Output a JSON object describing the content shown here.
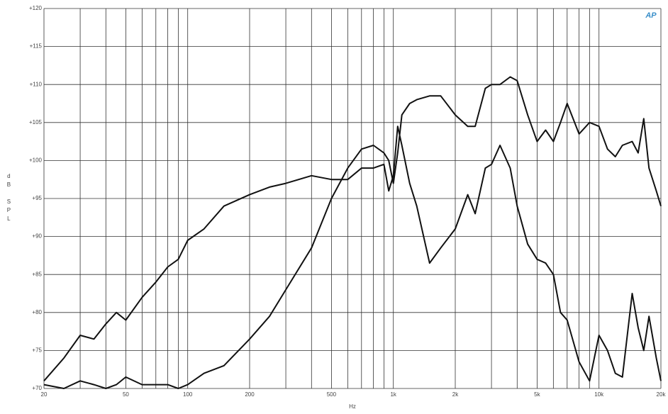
{
  "chart_data": {
    "type": "line",
    "logo": "AP",
    "xlabel": "Hz",
    "ylabel": "dB SPL",
    "xlog": true,
    "grid": true,
    "xlim": [
      20,
      20000
    ],
    "ylim": [
      70,
      120
    ],
    "xticks": [
      {
        "value": 20,
        "label": "20"
      },
      {
        "value": 50,
        "label": "50"
      },
      {
        "value": 100,
        "label": "100"
      },
      {
        "value": 200,
        "label": "200"
      },
      {
        "value": 500,
        "label": "500"
      },
      {
        "value": 1000,
        "label": "1k"
      },
      {
        "value": 2000,
        "label": "2k"
      },
      {
        "value": 5000,
        "label": "5k"
      },
      {
        "value": 10000,
        "label": "10k"
      },
      {
        "value": 20000,
        "label": "20k"
      }
    ],
    "xgrid": [
      30,
      40,
      60,
      70,
      80,
      90,
      300,
      400,
      600,
      700,
      800,
      900,
      3000,
      4000,
      6000,
      7000,
      8000,
      9000
    ],
    "yticks": [
      {
        "value": 70,
        "label": "+70"
      },
      {
        "value": 75,
        "label": "+75"
      },
      {
        "value": 80,
        "label": "+80"
      },
      {
        "value": 85,
        "label": "+85"
      },
      {
        "value": 90,
        "label": "+90"
      },
      {
        "value": 95,
        "label": "+95"
      },
      {
        "value": 100,
        "label": "+100"
      },
      {
        "value": 105,
        "label": "+105"
      },
      {
        "value": 110,
        "label": "+110"
      },
      {
        "value": 115,
        "label": "+115"
      },
      {
        "value": 120,
        "label": "+120"
      }
    ],
    "x": [
      20,
      25,
      30,
      35,
      40,
      45,
      50,
      60,
      70,
      80,
      90,
      100,
      120,
      150,
      200,
      250,
      300,
      400,
      500,
      600,
      700,
      800,
      900,
      950,
      1000,
      1050,
      1100,
      1200,
      1300,
      1500,
      1700,
      2000,
      2300,
      2500,
      2800,
      3000,
      3300,
      3700,
      4000,
      4500,
      5000,
      5500,
      6000,
      6500,
      7000,
      8000,
      9000,
      10000,
      11000,
      12000,
      13000,
      14500,
      15500,
      16500,
      17500,
      19000,
      20000
    ],
    "series": [
      {
        "color": "#111111",
        "values": [
          71,
          74,
          77,
          76.5,
          78.5,
          80,
          79,
          82,
          84,
          86,
          87,
          89.5,
          91,
          94,
          95.5,
          96.5,
          97,
          98,
          97.5,
          97.5,
          99,
          99,
          99.5,
          96,
          98,
          104.5,
          102,
          97,
          94,
          86.5,
          88.5,
          91,
          95.5,
          93,
          99,
          99.5,
          102,
          99,
          94,
          89,
          87,
          86.5,
          85,
          80,
          79,
          73.5,
          71,
          77,
          75,
          72,
          71.5,
          82.5,
          78,
          75,
          79.5,
          74,
          71
        ]
      },
      {
        "color": "#111111",
        "values": [
          70.5,
          70,
          71,
          70.5,
          70,
          70.5,
          71.5,
          70.5,
          70.5,
          70.5,
          70,
          70.5,
          72,
          73,
          76.5,
          79.5,
          83,
          88.5,
          95,
          99,
          101.5,
          102,
          101,
          100,
          97,
          101,
          106,
          107.5,
          108,
          108.5,
          108.5,
          106,
          104.5,
          104.5,
          109.5,
          110,
          110,
          111,
          110.5,
          106,
          102.5,
          104,
          102.5,
          105,
          107.5,
          103.5,
          105,
          104.5,
          101.5,
          100.5,
          102,
          102.5,
          101,
          105.5,
          99,
          96,
          94
        ]
      }
    ]
  }
}
